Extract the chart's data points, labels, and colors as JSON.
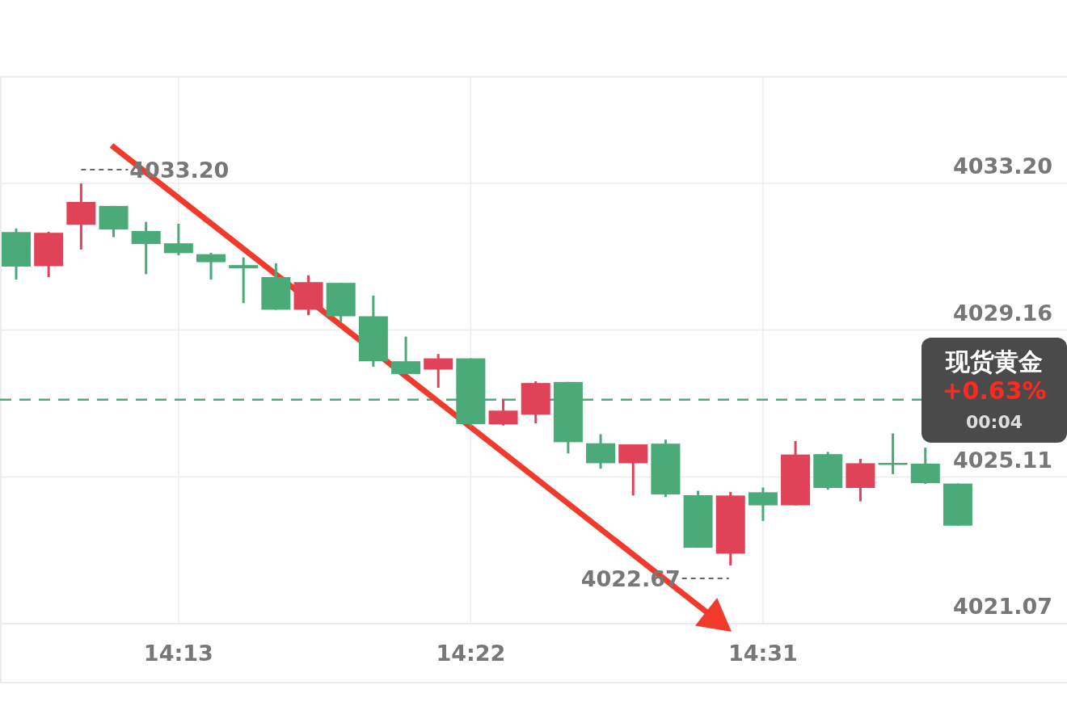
{
  "chart_data": {
    "type": "candlestick",
    "categories": [
      null,
      null,
      null,
      null,
      null,
      "14:13",
      null,
      null,
      null,
      null,
      null,
      null,
      null,
      null,
      "14:22",
      null,
      null,
      null,
      null,
      null,
      null,
      null,
      null,
      "14:31",
      null,
      null,
      null,
      null,
      null,
      null
    ],
    "ohlc": [
      [
        4031.86,
        4031.96,
        4030.55,
        4030.91
      ],
      [
        4030.92,
        4031.87,
        4030.62,
        4031.84
      ],
      [
        4032.06,
        4033.2,
        4031.38,
        4032.69
      ],
      [
        4032.58,
        4032.58,
        4031.72,
        4031.93
      ],
      [
        4031.89,
        4032.14,
        4030.7,
        4031.53
      ],
      [
        4031.55,
        4032.09,
        4031.22,
        4031.28
      ],
      [
        4031.25,
        4031.29,
        4030.55,
        4031.03
      ],
      [
        4030.95,
        4031.16,
        4029.9,
        4030.86
      ],
      [
        4030.62,
        4031.0,
        4029.72,
        4029.72
      ],
      [
        4029.72,
        4030.67,
        4029.57,
        4030.48
      ],
      [
        4030.46,
        4030.46,
        4029.38,
        4029.54
      ],
      [
        4029.54,
        4030.11,
        4028.15,
        4028.3
      ],
      [
        4028.3,
        4028.98,
        4027.95,
        4027.95
      ],
      [
        4028.07,
        4028.5,
        4027.57,
        4028.38
      ],
      [
        4028.38,
        4028.38,
        4026.51,
        4026.57
      ],
      [
        4026.56,
        4027.27,
        4026.53,
        4026.94
      ],
      [
        4026.83,
        4027.75,
        4026.59,
        4027.7
      ],
      [
        4027.73,
        4027.73,
        4025.76,
        4026.07
      ],
      [
        4026.04,
        4026.29,
        4025.34,
        4025.49
      ],
      [
        4025.49,
        4026.01,
        4024.6,
        4026.01
      ],
      [
        4026.03,
        4026.14,
        4024.56,
        4024.63
      ],
      [
        4024.61,
        4024.73,
        4023.16,
        4023.16
      ],
      [
        4023.0,
        4024.7,
        4022.67,
        4024.6
      ],
      [
        4024.69,
        4024.82,
        4023.9,
        4024.33
      ],
      [
        4024.33,
        4026.1,
        4024.33,
        4025.73
      ],
      [
        4025.74,
        4025.8,
        4024.76,
        4024.81
      ],
      [
        4024.81,
        4025.61,
        4024.44,
        4025.49
      ],
      [
        4025.5,
        4026.31,
        4025.19,
        4025.47
      ],
      [
        4025.48,
        4025.92,
        4024.92,
        4024.94
      ],
      [
        4024.93,
        4024.93,
        4023.77,
        4023.77
      ]
    ],
    "colors": [
      "#4aaa78",
      "#e04357",
      "#e04357",
      "#4aaa78",
      "#4aaa78",
      "#4aaa78",
      "#4aaa78",
      "#4aaa78",
      "#4aaa78",
      "#e04357",
      "#4aaa78",
      "#4aaa78",
      "#4aaa78",
      "#e04357",
      "#4aaa78",
      "#e04357",
      "#e04357",
      "#4aaa78",
      "#4aaa78",
      "#e04357",
      "#4aaa78",
      "#4aaa78",
      "#e04357",
      "#4aaa78",
      "#e04357",
      "#4aaa78",
      "#e04357",
      "#4aaa78",
      "#4aaa78",
      "#4aaa78"
    ],
    "ylim": [
      4021.07,
      4036.14
    ],
    "yticks": [
      {
        "value": 4021.07,
        "label": "4021.07"
      },
      {
        "value": 4025.11,
        "label": "4025.11"
      },
      {
        "value": 4029.16,
        "label": "4029.16"
      },
      {
        "value": 4033.2,
        "label": "4033.20"
      }
    ],
    "grid": true,
    "ref_lines": [
      {
        "axis": "y",
        "value": 4027.24,
        "color": "#4aaa78",
        "line_style": "dashed"
      }
    ],
    "annotations": [
      "4033.20",
      "4022.67",
      "现货黄金",
      "+0.63%",
      "00:04"
    ]
  }
}
